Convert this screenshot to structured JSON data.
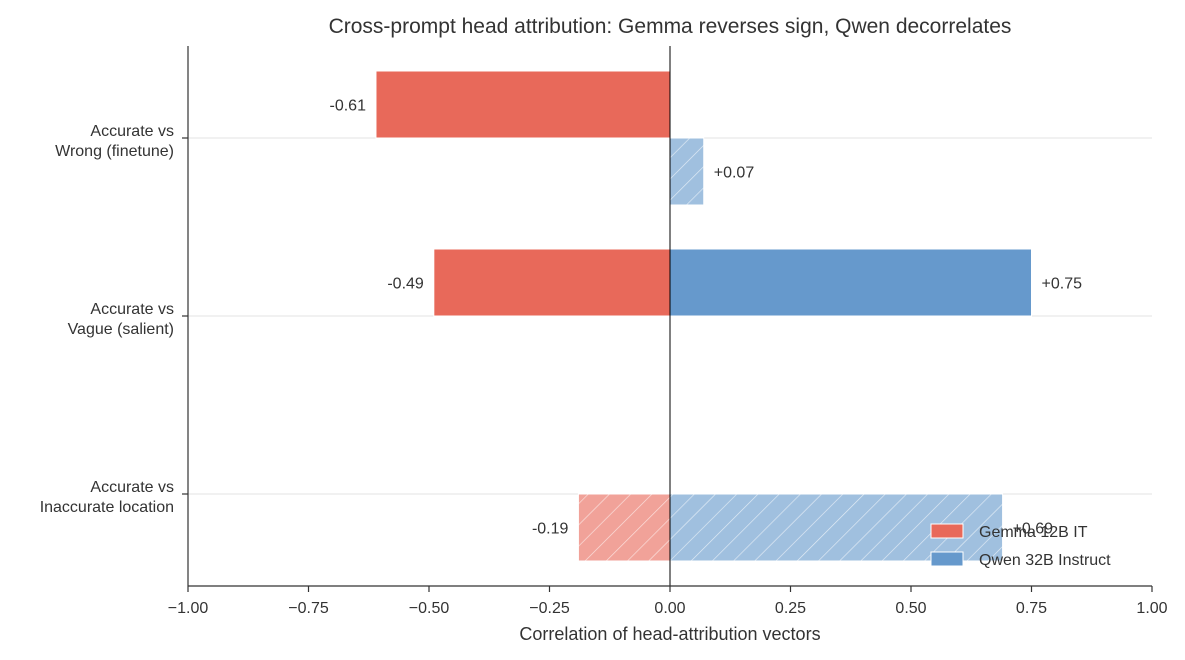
{
  "chart_data": {
    "type": "bar",
    "orientation": "horizontal",
    "title": "Cross-prompt head attribution: Gemma reverses sign, Qwen decorrelates",
    "xlabel": "Correlation of head-attribution vectors",
    "ylabel": "",
    "xlim": [
      -1.0,
      1.0
    ],
    "xticks": [
      -1.0,
      -0.75,
      -0.5,
      -0.25,
      0.0,
      0.25,
      0.5,
      0.75,
      1.0
    ],
    "xtick_labels": [
      "−1.00",
      "−0.75",
      "−0.50",
      "−0.25",
      "0.00",
      "0.25",
      "0.50",
      "0.75",
      "1.00"
    ],
    "categories": [
      [
        "Accurate vs",
        "Wrong (finetune)"
      ],
      [
        "Accurate vs",
        "Vague (salient)"
      ],
      [
        "Accurate vs",
        "Inaccurate location"
      ]
    ],
    "series": [
      {
        "name": "Gemma 12B IT",
        "color": "#e8695a",
        "values": [
          -0.61,
          -0.49,
          -0.19
        ],
        "labels": [
          "-0.61",
          "-0.49",
          "-0.19"
        ],
        "position": [
          "upper",
          "upper",
          "lower"
        ],
        "hatched": [
          false,
          false,
          true
        ],
        "faded": [
          false,
          false,
          true
        ]
      },
      {
        "name": "Qwen 32B Instruct",
        "color": "#6699cc",
        "values": [
          0.07,
          0.75,
          0.69
        ],
        "labels": [
          "+0.07",
          "+0.75",
          "+0.69"
        ],
        "position": [
          "lower",
          "upper",
          "lower"
        ],
        "hatched": [
          true,
          false,
          true
        ],
        "faded": [
          true,
          false,
          true
        ]
      }
    ],
    "legend": {
      "placement": "lower-right",
      "entries": [
        "Gemma 12B IT",
        "Qwen 32B Instruct"
      ]
    },
    "grid": "horizontal at category centers",
    "zero_line": true
  }
}
